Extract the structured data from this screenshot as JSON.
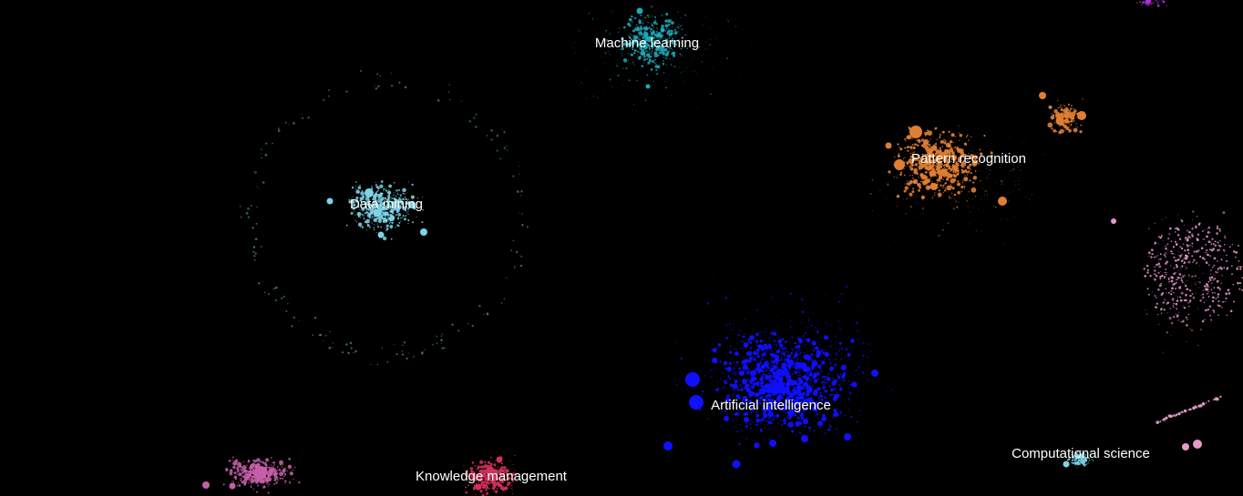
{
  "map": {
    "background": "#000000",
    "clusters": [
      {
        "id": "machine-learning",
        "label": "Machine learning",
        "color": "#1fa9b8"
      },
      {
        "id": "data-mining",
        "label": "Data mining",
        "color": "#7fd3e6"
      },
      {
        "id": "pattern-recognition",
        "label": "Pattern recognition",
        "color": "#e07f33"
      },
      {
        "id": "artificial-intelligence",
        "label": "Artificial intelligence",
        "color": "#1010ff"
      },
      {
        "id": "knowledge-management",
        "label": "Knowledge management",
        "color": "#d0315a"
      },
      {
        "id": "computational-science",
        "label": "Computational science",
        "color": "#7fd3e6"
      },
      {
        "id": "pink-left",
        "label": "",
        "color": "#c75fa8"
      },
      {
        "id": "pink-right",
        "label": "",
        "color": "#e69acb"
      },
      {
        "id": "purple-top",
        "label": "",
        "color": "#b030e0"
      }
    ]
  }
}
